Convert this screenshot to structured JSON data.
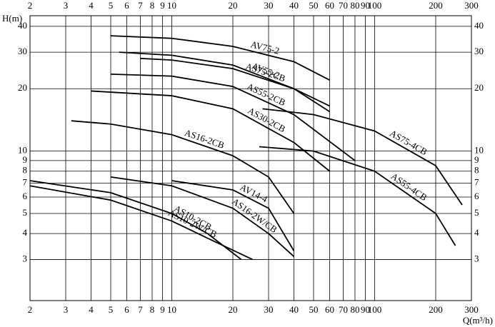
{
  "chart_data": {
    "type": "line",
    "x_label": "Q(m³/h)",
    "y_label": "H(m)",
    "xlim": [
      2,
      300
    ],
    "ylim": [
      1.9,
      45
    ],
    "log_x": true,
    "log_y": true,
    "grid": true,
    "color": "#000000",
    "xticks": [
      2,
      3,
      4,
      5,
      6,
      7,
      8,
      9,
      10,
      20,
      30,
      40,
      50,
      60,
      70,
      80,
      90,
      100,
      200,
      300
    ],
    "yticks": [
      3,
      4,
      5,
      6,
      7,
      8,
      9,
      10,
      20,
      30,
      40
    ],
    "series": [
      {
        "name": "AV75-2",
        "x": [
          5,
          10,
          20,
          40,
          60
        ],
        "values": [
          36,
          35,
          32,
          27,
          22
        ]
      },
      {
        "name": "AV55-2",
        "x": [
          5.5,
          10,
          20,
          40,
          60
        ],
        "values": [
          30,
          29,
          26,
          20,
          15.5
        ]
      },
      {
        "name": "AS75-2CB",
        "x": [
          7,
          10,
          20,
          40,
          60
        ],
        "values": [
          28,
          27.5,
          25,
          20,
          16.5
        ]
      },
      {
        "name": "AS55-2CB",
        "x": [
          5,
          10,
          20,
          40,
          80
        ],
        "values": [
          23.5,
          23,
          20.5,
          15,
          9
        ]
      },
      {
        "name": "AS30-2CB",
        "x": [
          4,
          10,
          20,
          40,
          60
        ],
        "values": [
          19.5,
          18.5,
          16,
          11,
          8
        ]
      },
      {
        "name": "AS16-2CB",
        "x": [
          3.2,
          5,
          10,
          20,
          30,
          40
        ],
        "values": [
          14,
          13.5,
          12,
          9.5,
          7.5,
          5
        ]
      },
      {
        "name": "AS75-4CB",
        "x": [
          28,
          50,
          100,
          200,
          270
        ],
        "values": [
          16,
          15,
          12.5,
          8.5,
          5.5
        ]
      },
      {
        "name": "AS55-4CB",
        "x": [
          27,
          50,
          100,
          200,
          250
        ],
        "values": [
          10.5,
          10,
          8,
          5,
          3.5
        ]
      },
      {
        "name": "AV14-4",
        "x": [
          10,
          20,
          30,
          40
        ],
        "values": [
          7.2,
          6.5,
          5.3,
          3.3
        ]
      },
      {
        "name": "AS16-2W/CB",
        "x": [
          5,
          10,
          20,
          30,
          40
        ],
        "values": [
          7.5,
          6.8,
          5.3,
          4,
          3.1
        ]
      },
      {
        "name": "AS10-2CB",
        "x": [
          2,
          5,
          10,
          15,
          22
        ],
        "values": [
          7.2,
          6.3,
          5,
          4,
          3
        ]
      },
      {
        "name": "AS10-2W/CB",
        "x": [
          2,
          5,
          10,
          15,
          25
        ],
        "values": [
          6.8,
          5.8,
          4.6,
          3.8,
          3
        ]
      }
    ]
  }
}
